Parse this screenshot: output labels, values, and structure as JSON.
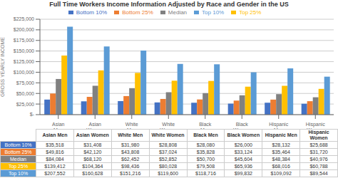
{
  "chart_data": {
    "type": "bar",
    "title": "Full Time Workers Income Information Adjusted by Race and Gender in the US",
    "ylabel": "GROSS YEARLY INCOME",
    "categories": [
      "Asian Men",
      "Asian Women",
      "White Men",
      "White Women",
      "Black Men",
      "Black Women",
      "Hispanic Men",
      "Hispanic Women"
    ],
    "series": [
      {
        "name": "Bottom 10%",
        "color": "#4472c4",
        "values": [
          35518,
          31408,
          31980,
          28808,
          28080,
          26000,
          28132,
          25688
        ],
        "value_labels": [
          "$35,518",
          "$31,408",
          "$31,980",
          "$28,808",
          "$28,080",
          "$26,000",
          "$28,132",
          "$25,688"
        ]
      },
      {
        "name": "Bottom 25%",
        "color": "#ed7d31",
        "values": [
          49816,
          42120,
          43808,
          37024,
          35828,
          33124,
          35464,
          31720
        ],
        "value_labels": [
          "$49,816",
          "$42,120",
          "$43,808",
          "$37,024",
          "$35,828",
          "$33,124",
          "$35,464",
          "$31,720"
        ]
      },
      {
        "name": "Median",
        "color": "#808080",
        "values": [
          84084,
          68120,
          62452,
          52852,
          50700,
          45604,
          48384,
          40976
        ],
        "value_labels": [
          "$84,084",
          "$68,120",
          "$62,452",
          "$52,852",
          "$50,700",
          "$45,604",
          "$48,384",
          "$40,976"
        ]
      },
      {
        "name": "Top 25%",
        "color": "#ffc000",
        "values": [
          139412,
          104364,
          98436,
          80028,
          79508,
          65936,
          68016,
          60788
        ],
        "value_labels": [
          "$139,412",
          "$104,364",
          "$98,436",
          "$80,028",
          "$79,508",
          "$65,936",
          "$68,016",
          "$60,788"
        ]
      },
      {
        "name": "Top 10%",
        "color": "#5b9bd5",
        "values": [
          207552,
          160628,
          151216,
          119600,
          118716,
          99832,
          109092,
          89544
        ],
        "value_labels": [
          "$207,552",
          "$160,628",
          "$151,216",
          "$119,600",
          "$118,716",
          "$99,832",
          "$109,092",
          "$89,544"
        ]
      }
    ],
    "ylim": [
      0,
      225000
    ],
    "yticks": [
      {
        "value": 0,
        "label": "$-"
      },
      {
        "value": 25000,
        "label": "$25,000"
      },
      {
        "value": 50000,
        "label": "$50,000"
      },
      {
        "value": 75000,
        "label": "$75,000"
      },
      {
        "value": 100000,
        "label": "$100,000"
      },
      {
        "value": 125000,
        "label": "$125,000"
      },
      {
        "value": 150000,
        "label": "$150,000"
      },
      {
        "value": 175000,
        "label": "$175,000"
      },
      {
        "value": 200000,
        "label": "$200,000"
      },
      {
        "value": 225000,
        "label": "$225,000"
      }
    ],
    "grid": true,
    "legend": "top"
  }
}
